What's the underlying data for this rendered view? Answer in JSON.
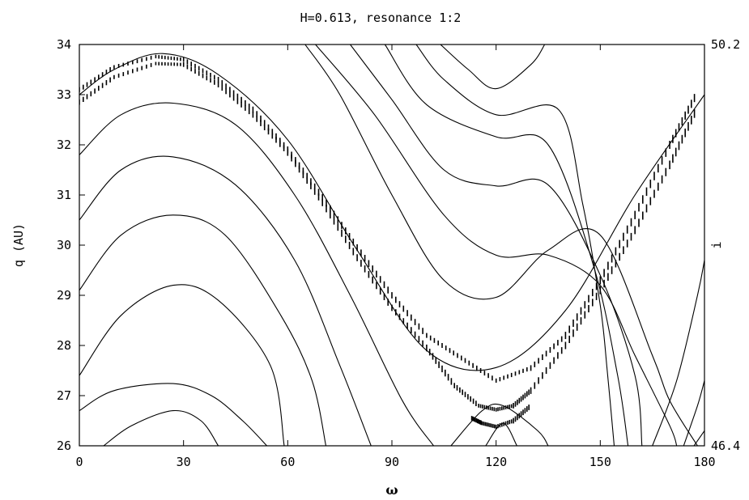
{
  "chart_data": {
    "type": "line",
    "title": "H=0.613, resonance 1:2",
    "xlabel": "ω",
    "ylabel": "q (AU)",
    "y2label": "i",
    "xlim": [
      0,
      180
    ],
    "ylim": [
      26,
      34
    ],
    "y2lim": [
      46.4,
      50.2
    ],
    "x_ticks": [
      "0",
      "30",
      "60",
      "90",
      "120",
      "150",
      "180"
    ],
    "y_ticks": [
      "26",
      "27",
      "28",
      "29",
      "30",
      "31",
      "32",
      "33",
      "34"
    ],
    "y2_ticks": [
      "46.4",
      "50.2"
    ],
    "grid": false,
    "contours": [
      {
        "label_y": 26.0,
        "points": [
          [
            7,
            26.0
          ],
          [
            15,
            26.4
          ],
          [
            27,
            26.7
          ],
          [
            35,
            26.5
          ],
          [
            40,
            26.0
          ]
        ]
      },
      {
        "points": [
          [
            0,
            26.7
          ],
          [
            10,
            27.1
          ],
          [
            27,
            27.24
          ],
          [
            38,
            27.0
          ],
          [
            47,
            26.5
          ],
          [
            54,
            26.0
          ]
        ]
      },
      {
        "points": [
          [
            0,
            27.4
          ],
          [
            12,
            28.6
          ],
          [
            27,
            29.2
          ],
          [
            40,
            28.9
          ],
          [
            55,
            27.6
          ],
          [
            59,
            26.0
          ]
        ]
      },
      {
        "points": [
          [
            0,
            29.1
          ],
          [
            12,
            30.2
          ],
          [
            27,
            30.6
          ],
          [
            42,
            30.2
          ],
          [
            58,
            28.6
          ],
          [
            67,
            27.3
          ],
          [
            71,
            26.0
          ]
        ]
      },
      {
        "points": [
          [
            0,
            30.5
          ],
          [
            12,
            31.5
          ],
          [
            27,
            31.76
          ],
          [
            45,
            31.2
          ],
          [
            62,
            29.7
          ],
          [
            75,
            27.6
          ],
          [
            84,
            26.0
          ]
        ]
      },
      {
        "points": [
          [
            0,
            31.8
          ],
          [
            12,
            32.6
          ],
          [
            27,
            32.83
          ],
          [
            45,
            32.4
          ],
          [
            62,
            31.0
          ],
          [
            78,
            29.0
          ],
          [
            93,
            26.9
          ],
          [
            102,
            26.0
          ]
        ]
      },
      {
        "points": [
          [
            0,
            33.0
          ],
          [
            10,
            33.5
          ],
          [
            24,
            33.82
          ],
          [
            40,
            33.4
          ],
          [
            60,
            32.1
          ],
          [
            80,
            29.9
          ],
          [
            100,
            27.9
          ],
          [
            120,
            27.56
          ],
          [
            140,
            28.7
          ],
          [
            160,
            31.0
          ],
          [
            180,
            33.0
          ]
        ]
      },
      {
        "points": [
          [
            117,
            26.0
          ],
          [
            122,
            26.45
          ],
          [
            126,
            26.0
          ]
        ]
      },
      {
        "points": [
          [
            107,
            26.0
          ],
          [
            116,
            26.7
          ],
          [
            122,
            26.8
          ],
          [
            132,
            26.3
          ],
          [
            135,
            26.0
          ]
        ]
      },
      {
        "points": [
          [
            65,
            34.0
          ],
          [
            75,
            33.0
          ],
          [
            90,
            31.0
          ],
          [
            105,
            29.3
          ],
          [
            120,
            28.96
          ],
          [
            135,
            29.9
          ],
          [
            150,
            30.2
          ],
          [
            165,
            27.8
          ],
          [
            170,
            26.9
          ],
          [
            178,
            26.0
          ]
        ]
      },
      {
        "points": [
          [
            68,
            34.0
          ],
          [
            85,
            32.6
          ],
          [
            105,
            30.6
          ],
          [
            120,
            29.8
          ],
          [
            135,
            29.8
          ],
          [
            150,
            29.2
          ],
          [
            160,
            27.8
          ],
          [
            170,
            26.4
          ],
          [
            172,
            26.0
          ]
        ]
      },
      {
        "points": [
          [
            78,
            34.0
          ],
          [
            90,
            32.9
          ],
          [
            105,
            31.5
          ],
          [
            120,
            31.18
          ],
          [
            135,
            31.2
          ],
          [
            150,
            29.4
          ],
          [
            160,
            27.4
          ],
          [
            162,
            26.0
          ]
        ]
      },
      {
        "points": [
          [
            88,
            34.0
          ],
          [
            100,
            32.8
          ],
          [
            120,
            32.16
          ],
          [
            135,
            32.0
          ],
          [
            148,
            29.6
          ],
          [
            155,
            27.4
          ],
          [
            158,
            26.0
          ]
        ]
      },
      {
        "points": [
          [
            97,
            34.0
          ],
          [
            105,
            33.3
          ],
          [
            120,
            32.6
          ],
          [
            138,
            32.7
          ],
          [
            145,
            30.8
          ],
          [
            150,
            28.8
          ],
          [
            152,
            27.5
          ],
          [
            154,
            26.0
          ]
        ]
      },
      {
        "points": [
          [
            104,
            34.0
          ],
          [
            112,
            33.5
          ],
          [
            120,
            33.12
          ],
          [
            130,
            33.6
          ],
          [
            134,
            34.0
          ]
        ]
      },
      {
        "points": [
          [
            165,
            26.0
          ],
          [
            172,
            27.3
          ],
          [
            178,
            29.0
          ],
          [
            180,
            29.7
          ]
        ]
      },
      {
        "points": [
          [
            174,
            26.0
          ],
          [
            178,
            26.8
          ],
          [
            180,
            27.3
          ]
        ]
      },
      {
        "points": [
          [
            177,
            26.0
          ],
          [
            180,
            26.3
          ]
        ]
      }
    ],
    "orbit_points": [
      {
        "band": "upper",
        "points": [
          [
            0,
            33.1
          ],
          [
            10,
            33.55
          ],
          [
            22,
            33.76
          ],
          [
            30,
            33.7
          ],
          [
            40,
            33.3
          ],
          [
            50,
            32.7
          ],
          [
            60,
            31.9
          ],
          [
            70,
            30.95
          ],
          [
            80,
            29.95
          ],
          [
            90,
            29.0
          ],
          [
            100,
            28.2
          ],
          [
            110,
            27.75
          ],
          [
            120,
            27.3
          ],
          [
            130,
            27.55
          ],
          [
            140,
            28.2
          ],
          [
            150,
            29.3
          ],
          [
            160,
            30.6
          ],
          [
            170,
            32.0
          ],
          [
            178,
            33.05
          ]
        ]
      },
      {
        "band": "lower",
        "points": [
          [
            0,
            32.85
          ],
          [
            10,
            33.35
          ],
          [
            22,
            33.62
          ],
          [
            30,
            33.6
          ],
          [
            40,
            33.2
          ],
          [
            50,
            32.6
          ],
          [
            60,
            31.85
          ],
          [
            70,
            30.85
          ],
          [
            80,
            29.75
          ],
          [
            90,
            28.75
          ],
          [
            100,
            27.95
          ],
          [
            108,
            27.2
          ],
          [
            115,
            26.8
          ],
          [
            120,
            26.72
          ],
          [
            125,
            26.8
          ],
          [
            130,
            27.1
          ],
          [
            140,
            28.0
          ],
          [
            150,
            29.1
          ],
          [
            160,
            30.3
          ],
          [
            170,
            31.6
          ],
          [
            178,
            32.75
          ]
        ]
      },
      {
        "band": "inner",
        "points": [
          [
            113,
            26.55
          ],
          [
            116,
            26.45
          ],
          [
            120,
            26.38
          ],
          [
            125,
            26.5
          ],
          [
            130,
            26.8
          ]
        ]
      }
    ]
  }
}
